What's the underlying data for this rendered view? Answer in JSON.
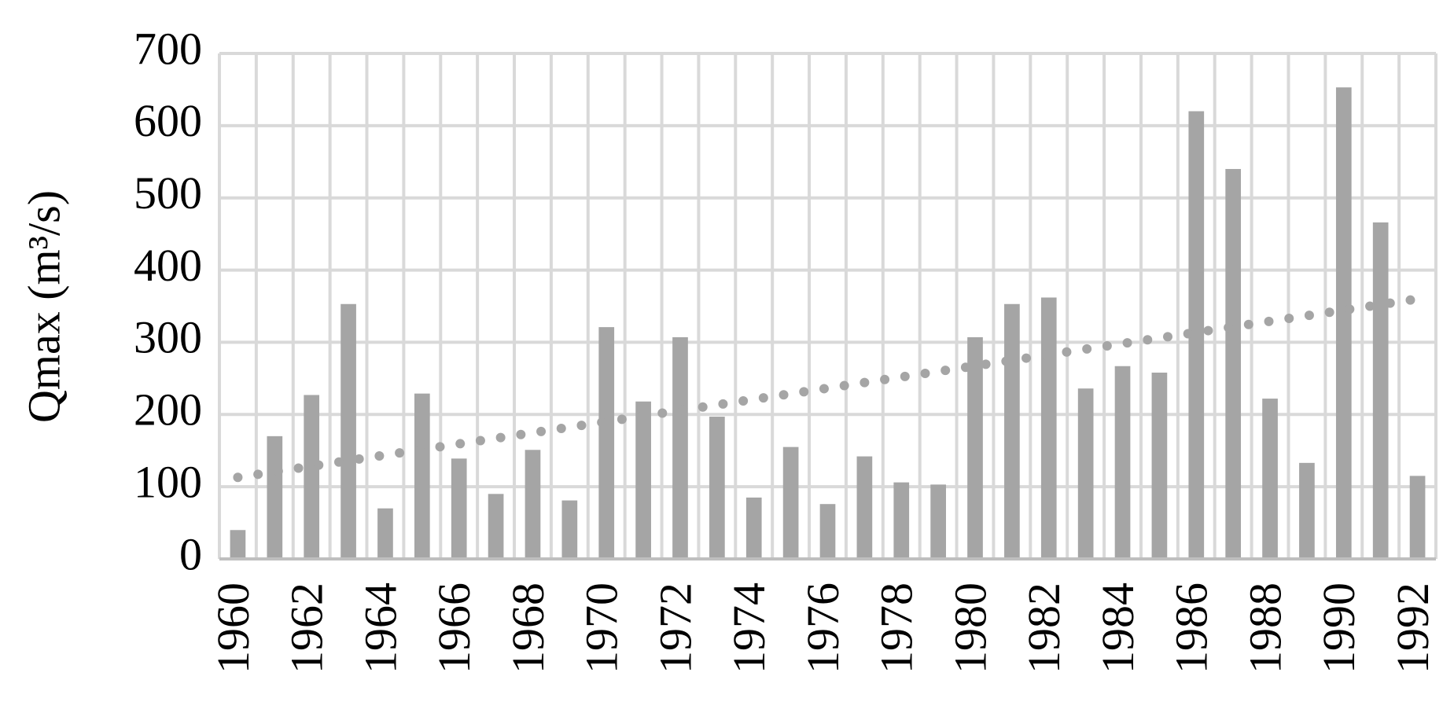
{
  "chart_data": {
    "type": "bar",
    "y_label": "Qmax (m³/s)",
    "categories": [
      "1960",
      null,
      "1962",
      null,
      "1964",
      null,
      "1966",
      null,
      "1968",
      null,
      "1970",
      null,
      "1972",
      null,
      "1974",
      null,
      "1976",
      null,
      "1978",
      null,
      "1980",
      null,
      "1982",
      null,
      "1984",
      null,
      "1986",
      null,
      "1988",
      null,
      "1990",
      null,
      "1992"
    ],
    "values": [
      40,
      170,
      227,
      353,
      70,
      229,
      139,
      90,
      151,
      81,
      321,
      218,
      307,
      197,
      85,
      155,
      76,
      142,
      106,
      103,
      307,
      353,
      362,
      236,
      267,
      258,
      620,
      540,
      222,
      133,
      653,
      466,
      115
    ],
    "color": "#a5a5a5",
    "trend": {
      "values": [
        113,
        360
      ],
      "color": "#a5a5a5"
    },
    "ylim": [
      0,
      700
    ],
    "yticks": [
      0,
      100,
      200,
      300,
      400,
      500,
      600,
      700
    ],
    "grid": true
  }
}
